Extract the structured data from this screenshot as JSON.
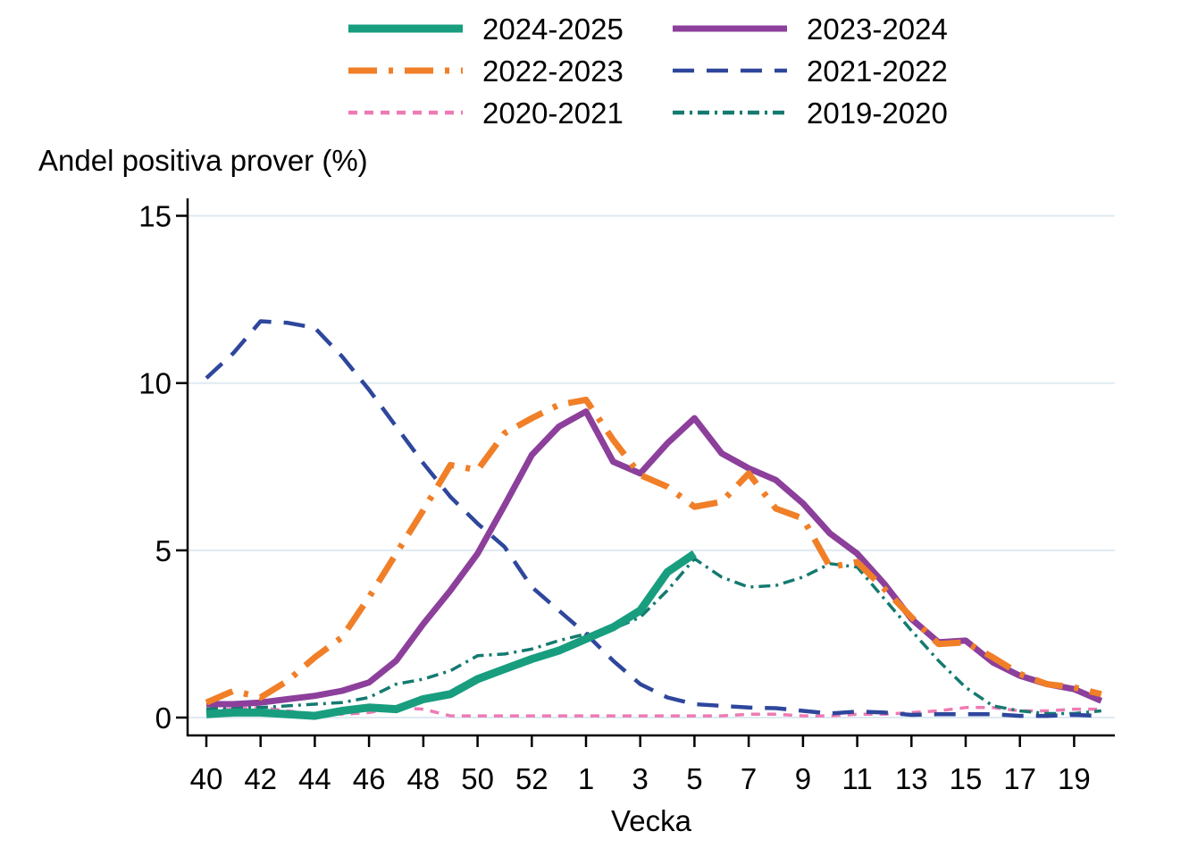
{
  "chart_data": {
    "type": "line",
    "title": "Andel positiva prover (%)",
    "xlabel": "Vecka",
    "ylabel": "",
    "ylim": [
      0,
      15
    ],
    "yticks": [
      0,
      5,
      10,
      15
    ],
    "grid": "horizontal",
    "grid_color": "#dfeaf2",
    "axis_color": "#000000",
    "legend_position": "top",
    "categories": [
      "40",
      "41",
      "42",
      "43",
      "44",
      "45",
      "46",
      "47",
      "48",
      "49",
      "50",
      "51",
      "52",
      "53",
      "1",
      "2",
      "3",
      "4",
      "5",
      "6",
      "7",
      "8",
      "9",
      "10",
      "11",
      "12",
      "13",
      "14",
      "15",
      "16",
      "17",
      "18",
      "19",
      "20"
    ],
    "xticks": [
      [
        "40",
        0
      ],
      [
        "42",
        2
      ],
      [
        "44",
        4
      ],
      [
        "46",
        6
      ],
      [
        "48",
        8
      ],
      [
        "50",
        10
      ],
      [
        "52",
        12
      ],
      [
        "1",
        14
      ],
      [
        "3",
        16
      ],
      [
        "5",
        18
      ],
      [
        "7",
        20
      ],
      [
        "9",
        22
      ],
      [
        "11",
        24
      ],
      [
        "13",
        26
      ],
      [
        "15",
        28
      ],
      [
        "17",
        30
      ],
      [
        "19",
        32
      ]
    ],
    "series": [
      {
        "name": "2024-2025",
        "color": "#189e7f",
        "style": "solid",
        "width": 9,
        "values": [
          0.1,
          0.15,
          0.15,
          0.1,
          0.05,
          0.2,
          0.3,
          0.25,
          0.55,
          0.7,
          1.15,
          1.45,
          1.75,
          2.0,
          2.35,
          2.7,
          3.2,
          4.35,
          4.9,
          null,
          null,
          null,
          null,
          null,
          null,
          null,
          null,
          null,
          null,
          null,
          null,
          null,
          null,
          null
        ]
      },
      {
        "name": "2023-2024",
        "color": "#8c3f9b",
        "style": "solid",
        "width": 7,
        "values": [
          0.4,
          0.4,
          0.45,
          0.55,
          0.65,
          0.8,
          1.05,
          1.7,
          2.8,
          3.8,
          4.9,
          6.35,
          7.85,
          8.7,
          9.15,
          7.65,
          7.3,
          8.2,
          8.95,
          7.9,
          7.45,
          7.1,
          6.4,
          5.5,
          4.9,
          4.0,
          2.95,
          2.25,
          2.3,
          1.65,
          1.25,
          1.0,
          0.85,
          0.5
        ]
      },
      {
        "name": "2022-2023",
        "color": "#f07f28",
        "style": "dashdot",
        "width": 7,
        "values": [
          0.45,
          0.8,
          0.6,
          1.1,
          1.8,
          2.4,
          3.6,
          4.9,
          6.2,
          7.55,
          7.4,
          8.5,
          8.95,
          9.35,
          9.5,
          8.3,
          7.25,
          6.9,
          6.3,
          6.45,
          7.3,
          6.25,
          5.95,
          4.5,
          4.65,
          3.85,
          3.0,
          2.2,
          2.25,
          1.8,
          1.3,
          1.0,
          0.9,
          0.7
        ]
      },
      {
        "name": "2021-2022",
        "color": "#2e479c",
        "style": "dash",
        "width": 4.5,
        "values": [
          10.15,
          10.9,
          11.85,
          11.8,
          11.65,
          10.8,
          9.8,
          8.7,
          7.6,
          6.6,
          5.8,
          5.1,
          3.9,
          3.2,
          2.5,
          1.7,
          1.0,
          0.6,
          0.4,
          0.35,
          0.3,
          0.28,
          0.2,
          0.12,
          0.18,
          0.15,
          0.08,
          0.1,
          0.1,
          0.1,
          0.05,
          0.05,
          0.08,
          0.05
        ]
      },
      {
        "name": "2020-2021",
        "color": "#ee7ab4",
        "style": "shortdash",
        "width": 3.5,
        "values": [
          0.2,
          0.25,
          0.3,
          0.2,
          0.1,
          0.1,
          0.15,
          0.3,
          0.25,
          0.05,
          0.05,
          0.05,
          0.05,
          0.05,
          0.05,
          0.05,
          0.05,
          0.05,
          0.05,
          0.05,
          0.1,
          0.1,
          0.05,
          0.05,
          0.1,
          0.1,
          0.15,
          0.2,
          0.3,
          0.3,
          0.2,
          0.2,
          0.25,
          0.25
        ]
      },
      {
        "name": "2019-2020",
        "color": "#147a70",
        "style": "dashdotdot",
        "width": 3.5,
        "values": [
          0.25,
          0.3,
          0.3,
          0.35,
          0.4,
          0.45,
          0.6,
          1.0,
          1.15,
          1.4,
          1.85,
          1.9,
          2.05,
          2.3,
          2.5,
          2.65,
          3.0,
          3.8,
          4.75,
          4.2,
          3.9,
          3.95,
          4.2,
          4.6,
          4.5,
          3.55,
          2.6,
          1.7,
          0.9,
          0.35,
          0.2,
          0.12,
          0.12,
          0.2
        ]
      }
    ],
    "draw_order": [
      "2020-2021",
      "2019-2020",
      "2021-2022",
      "2023-2024",
      "2022-2023",
      "2024-2025"
    ]
  }
}
